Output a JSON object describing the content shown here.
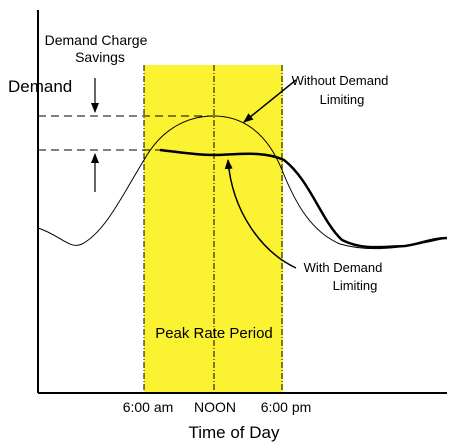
{
  "chart_data": {
    "type": "line",
    "xlabel": "Time of Day",
    "ylabel": "Demand",
    "x_ticks": [
      "6:00 am",
      "NOON",
      "6:00 pm"
    ],
    "shaded_region": {
      "label": "Peak Rate Period",
      "from": "6:00 am",
      "to": "6:00 pm",
      "color": "#fbf232"
    },
    "series": [
      {
        "name": "Without Demand Limiting",
        "style": "thin",
        "color": "#000000"
      },
      {
        "name": "With Demand Limiting",
        "style": "thick",
        "color": "#000000"
      }
    ],
    "annotations": {
      "savings": "Demand Charge Savings",
      "savings_line1": "Demand Charge",
      "savings_line2": "Savings",
      "without_line1": "Without Demand",
      "without_line2": "Limiting",
      "with_line1": "With Demand",
      "with_line2": "Limiting"
    },
    "grid": false,
    "legend": "none"
  }
}
